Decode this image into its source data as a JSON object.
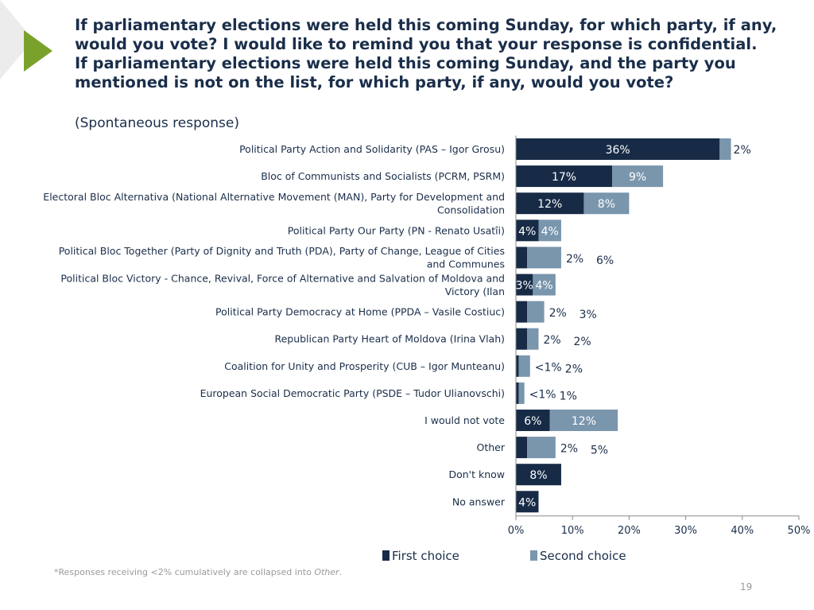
{
  "slide": {
    "title_lines": [
      "If parliamentary elections were held this coming Sunday, for which party, if any,",
      "would you vote? I would like to remind you that your response is confidential.",
      "If parliamentary elections were held this coming Sunday, and the party you",
      "mentioned is not on the list, for which party, if any, would you vote?"
    ],
    "subtitle": "(Spontaneous response)",
    "footnote_prefix": "*Responses receiving <2% cumulatively are collapsed into ",
    "footnote_italic": "Other",
    "footnote_suffix": ".",
    "page_number": "19"
  },
  "colors": {
    "first": "#172b46",
    "second": "#7a96ad",
    "title": "#1a2e4a",
    "accent": "#7aa22a"
  },
  "chart_data": {
    "type": "bar",
    "orientation": "horizontal",
    "stacked": true,
    "categories": [
      "Political Party Action and Solidarity (PAS – Igor Grosu)",
      "Bloc of Communists and Socialists (PCRM, PSRM)",
      "Electoral Bloc Alternativa (National Alternative Movement (MAN), Party for Development and Consolidation",
      "Political Party Our Party (PN - Renato Usatîi)",
      "Political Bloc Together (Party of Dignity and Truth (PDA), Party of Change, League of Cities and Communes",
      "Political Bloc Victory - Chance, Revival, Force of Alternative and Salvation of Moldova and Victory (Ilan",
      "Political Party Democracy at Home (PPDA – Vasile Costiuc)",
      "Republican Party Heart of Moldova (Irina Vlah)",
      "Coalition for Unity and Prosperity (CUB – Igor Munteanu)",
      "European Social Democratic Party (PSDE – Tudor Ulianovschi)",
      "I would not vote",
      "Other",
      "Don't know",
      "No answer"
    ],
    "category_lines": [
      [
        "Political Party Action and Solidarity (PAS – Igor Grosu)"
      ],
      [
        "Bloc of Communists and Socialists (PCRM, PSRM)"
      ],
      [
        "Electoral Bloc Alternativa (National Alternative Movement (MAN), Party for Development and",
        "Consolidation"
      ],
      [
        "Political Party Our Party (PN - Renato Usatîi)"
      ],
      [
        "Political Bloc Together (Party of Dignity and Truth (PDA), Party of Change, League of Cities",
        "and Communes"
      ],
      [
        "Political Bloc Victory - Chance, Revival, Force of Alternative and Salvation of Moldova and",
        "Victory (Ilan"
      ],
      [
        "Political Party Democracy at Home (PPDA – Vasile Costiuc)"
      ],
      [
        "Republican Party Heart of Moldova (Irina Vlah)"
      ],
      [
        "Coalition for Unity and Prosperity (CUB – Igor Munteanu)"
      ],
      [
        "European Social Democratic Party (PSDE – Tudor Ulianovschi)"
      ],
      [
        "I would not vote"
      ],
      [
        "Other"
      ],
      [
        "Don't know"
      ],
      [
        "No answer"
      ]
    ],
    "series": [
      {
        "name": "First choice",
        "values": [
          36,
          17,
          12,
          4,
          2,
          3,
          2,
          2,
          0.5,
          0.5,
          6,
          2,
          8,
          4
        ],
        "labels": [
          "36%",
          "17%",
          "12%",
          "4%",
          "2%",
          "3%",
          "2%",
          "2%",
          "<1%",
          "<1%",
          "6%",
          "2%",
          "8%",
          "4%"
        ]
      },
      {
        "name": "Second choice",
        "values": [
          2,
          9,
          8,
          4,
          6,
          4,
          3,
          2,
          2,
          1,
          12,
          5,
          0,
          0
        ],
        "labels": [
          "2%",
          "9%",
          "8%",
          "4%",
          "6%",
          "4%",
          "3%",
          "2%",
          "2%",
          "1%",
          "12%",
          "5%",
          "",
          ""
        ]
      }
    ],
    "xlim": [
      0,
      50
    ],
    "xticks": [
      "0%",
      "10%",
      "20%",
      "30%",
      "40%",
      "50%"
    ],
    "grid": false,
    "legend_position": "bottom"
  }
}
